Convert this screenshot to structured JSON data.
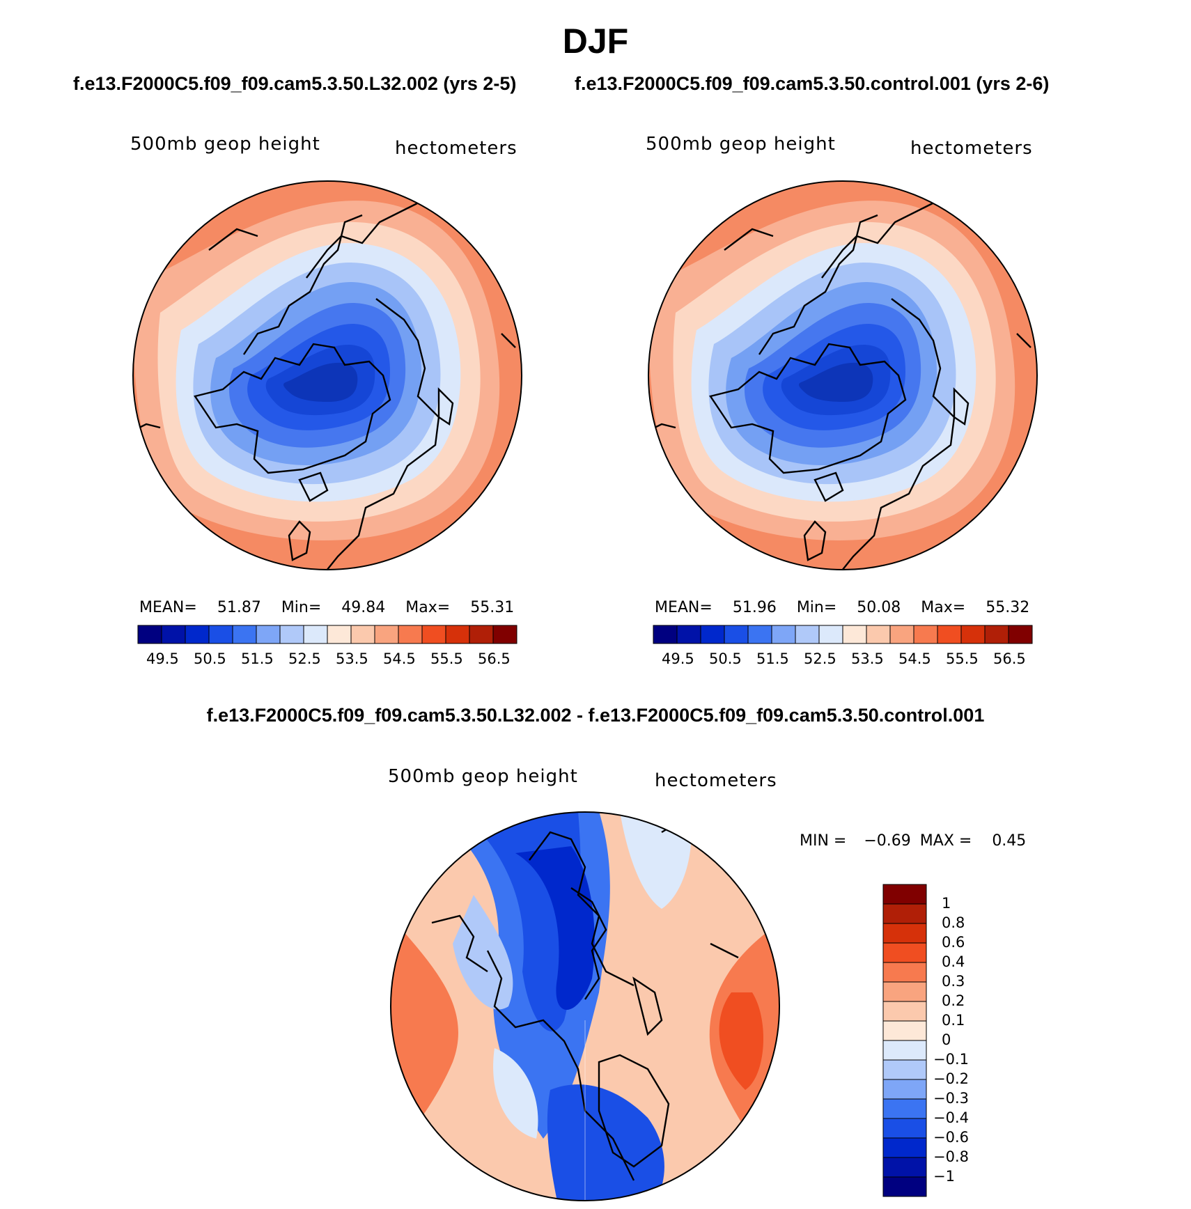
{
  "figure": {
    "title": "DJF"
  },
  "panels": [
    {
      "case_title": "f.e13.F2000C5.f09_f09.cam5.3.50.L32.002 (yrs 2-5)",
      "left_label": "500mb geop height",
      "right_label": "hectometers",
      "stats": {
        "mean_label": "MEAN=",
        "mean": "51.87",
        "min_label": "Min=",
        "min": "49.84",
        "max_label": "Max=",
        "max": "55.31"
      }
    },
    {
      "case_title": "f.e13.F2000C5.f09_f09.cam5.3.50.control.001 (yrs 2-6)",
      "left_label": "500mb geop height",
      "right_label": "hectometers",
      "stats": {
        "mean_label": "MEAN=",
        "mean": "51.96",
        "min_label": "Min=",
        "min": "50.08",
        "max_label": "Max=",
        "max": "55.32"
      }
    }
  ],
  "colorbar_abs": {
    "colors": [
      "#000080",
      "#0012a8",
      "#0028cc",
      "#1a4fe6",
      "#3b74f2",
      "#7ea6f7",
      "#b0c9f9",
      "#dce9fb",
      "#fde8d8",
      "#fbc9ad",
      "#f9a47f",
      "#f77a4f",
      "#f04e21",
      "#d6310a",
      "#b01f07",
      "#800000"
    ],
    "tick_labels": [
      "49.5",
      "50.5",
      "51.5",
      "52.5",
      "53.5",
      "54.5",
      "55.5",
      "56.5"
    ]
  },
  "difference_panel": {
    "title": "f.e13.F2000C5.f09_f09.cam5.3.50.L32.002 - f.e13.F2000C5.f09_f09.cam5.3.50.control.001",
    "left_label": "500mb geop height",
    "right_label": "hectometers",
    "minmax": {
      "min_label": "MIN =",
      "min": "−0.69",
      "max_label": "MAX =",
      "max": "0.45"
    },
    "colorbar": {
      "colors": [
        "#800000",
        "#b01f07",
        "#d6310a",
        "#f04e21",
        "#f77a4f",
        "#f9a47f",
        "#fbc9ad",
        "#fde8d8",
        "#dce9fb",
        "#b0c9f9",
        "#7ea6f7",
        "#3b74f2",
        "#1a4fe6",
        "#0028cc",
        "#0012a8",
        "#000080"
      ],
      "tick_labels": [
        "1",
        "0.8",
        "0.6",
        "0.4",
        "0.3",
        "0.2",
        "0.1",
        "0",
        "−0.1",
        "−0.2",
        "−0.3",
        "−0.4",
        "−0.6",
        "−0.8",
        "−1"
      ]
    }
  },
  "map_layers": [
    {
      "name": "left-map-fill",
      "colors": [
        "#f58a63",
        "#f9b093",
        "#fcd8c4",
        "#dbe8fb",
        "#a8c4f8",
        "#74a0f3",
        "#4677ef",
        "#2458e8",
        "#1546d6",
        "#0d35b8"
      ]
    },
    {
      "name": "right-map-fill",
      "colors": [
        "#f58a63",
        "#f9b093",
        "#fcd8c4",
        "#dbe8fb",
        "#a8c4f8",
        "#74a0f3",
        "#4677ef",
        "#2458e8",
        "#1546d6",
        "#0d35b8"
      ]
    }
  ]
}
